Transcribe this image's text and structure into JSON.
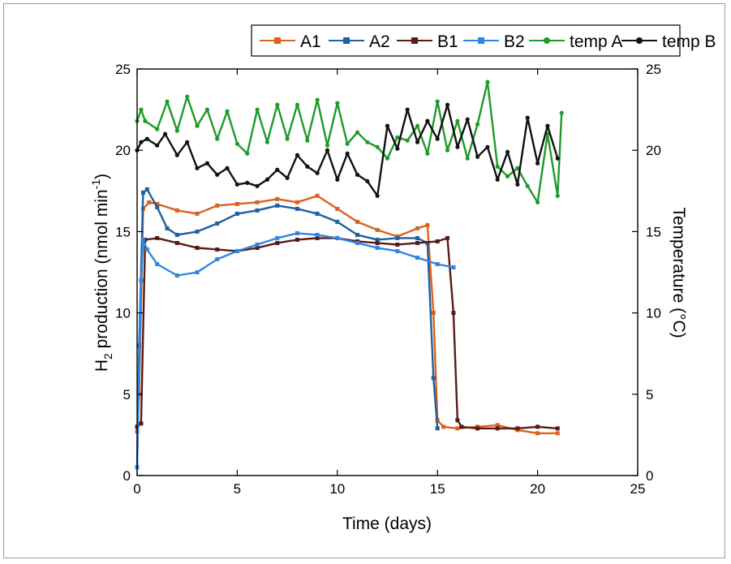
{
  "chart_data": {
    "type": "line",
    "xlabel": "Time (days)",
    "ylabel_main": "H",
    "ylabel_sub": "2",
    "ylabel_rest": " production (nmol min",
    "ylabel_sup": "-1",
    "ylabel_end": ")",
    "y2label": "Temperature (°C)",
    "xlim": [
      0,
      25
    ],
    "ylim": [
      0,
      25
    ],
    "y2lim": [
      0,
      25
    ],
    "xticks": [
      "0",
      "5",
      "10",
      "15",
      "20",
      "25"
    ],
    "yticks": [
      "0",
      "5",
      "10",
      "15",
      "20",
      "25"
    ],
    "y2ticks": [
      "0",
      "5",
      "10",
      "15",
      "20",
      "25"
    ],
    "legend_position": "top",
    "series": [
      {
        "name": "A1",
        "axis": "left",
        "color": "#d9621e",
        "marker": "square",
        "x": [
          0,
          0.1,
          0.3,
          0.6,
          1,
          2,
          3,
          4,
          5,
          6,
          7,
          8,
          9,
          10,
          11,
          12,
          13,
          14,
          14.5,
          14.8,
          15,
          15.3,
          16,
          17,
          18,
          19,
          20,
          21
        ],
        "y": [
          2.7,
          5,
          16.4,
          16.8,
          16.7,
          16.3,
          16.1,
          16.6,
          16.7,
          16.8,
          17,
          16.8,
          17.2,
          16.4,
          15.6,
          15.1,
          14.7,
          15.2,
          15.4,
          10,
          3.4,
          3.0,
          2.9,
          3.0,
          3.1,
          2.8,
          2.6,
          2.6
        ]
      },
      {
        "name": "A2",
        "axis": "left",
        "color": "#1e5f9e",
        "marker": "square",
        "x": [
          0,
          0.1,
          0.3,
          0.5,
          1,
          1.5,
          2,
          3,
          4,
          5,
          6,
          7,
          8,
          9,
          10,
          11,
          12,
          13,
          14,
          14.5,
          14.8,
          15
        ],
        "y": [
          0.5,
          8,
          17.4,
          17.6,
          16.5,
          15.2,
          14.8,
          15.0,
          15.5,
          16.1,
          16.3,
          16.6,
          16.4,
          16.1,
          15.6,
          14.8,
          14.5,
          14.6,
          14.6,
          14.3,
          6,
          2.9
        ]
      },
      {
        "name": "B1",
        "axis": "left",
        "color": "#5a1a18",
        "marker": "square",
        "x": [
          0,
          0.2,
          0.4,
          1,
          2,
          3,
          4,
          5,
          6,
          7,
          8,
          9,
          10,
          11,
          12,
          13,
          14,
          15,
          15.5,
          15.8,
          16,
          16.2,
          17,
          18,
          19,
          20,
          21
        ],
        "y": [
          3.0,
          3.2,
          14.5,
          14.6,
          14.3,
          14.0,
          13.9,
          13.8,
          14.0,
          14.3,
          14.5,
          14.6,
          14.6,
          14.4,
          14.3,
          14.2,
          14.3,
          14.4,
          14.6,
          10,
          3.4,
          3.0,
          2.9,
          2.9,
          2.9,
          3.0,
          2.9
        ]
      },
      {
        "name": "B2",
        "axis": "left",
        "color": "#2f86e0",
        "marker": "square",
        "x": [
          0,
          0.2,
          0.3,
          0.5,
          1,
          2,
          3,
          4,
          5,
          6,
          7,
          8,
          9,
          10,
          11,
          12,
          13,
          14,
          15,
          15.8
        ],
        "y": [
          0.5,
          12,
          14.5,
          13.9,
          13.0,
          12.3,
          12.5,
          13.3,
          13.8,
          14.2,
          14.6,
          14.9,
          14.8,
          14.6,
          14.3,
          14.0,
          13.8,
          13.4,
          13.0,
          12.8
        ]
      },
      {
        "name": "temp A",
        "axis": "right",
        "color": "#1f9a2a",
        "marker": "circle",
        "x": [
          0,
          0.2,
          0.4,
          1,
          1.5,
          2,
          2.5,
          3,
          3.5,
          4,
          4.5,
          5,
          5.5,
          6,
          6.5,
          7,
          7.5,
          8,
          8.5,
          9,
          9.5,
          10,
          10.5,
          11,
          11.5,
          12,
          12.5,
          13,
          13.5,
          14,
          14.5,
          15,
          15.5,
          16,
          16.5,
          17,
          17.5,
          18,
          18.5,
          19,
          19.5,
          20,
          20.5,
          21,
          21.2
        ],
        "y": [
          21.8,
          22.5,
          21.8,
          21.3,
          23.0,
          21.2,
          23.3,
          21.5,
          22.5,
          20.7,
          22.4,
          20.4,
          19.8,
          22.5,
          20.5,
          22.8,
          20.7,
          22.8,
          20.6,
          23.1,
          20.3,
          22.9,
          20.4,
          21.1,
          20.5,
          20.2,
          19.5,
          20.8,
          20.6,
          21.5,
          19.8,
          23.0,
          20.0,
          21.8,
          19.5,
          21.6,
          24.2,
          19.0,
          18.4,
          18.9,
          17.8,
          16.8,
          21.0,
          17.2,
          22.3
        ]
      },
      {
        "name": "temp B",
        "axis": "right",
        "color": "#111111",
        "marker": "circle",
        "x": [
          0,
          0.2,
          0.5,
          1,
          1.4,
          2,
          2.5,
          3,
          3.5,
          4,
          4.5,
          5,
          5.5,
          6,
          6.5,
          7,
          7.5,
          8,
          8.5,
          9,
          9.5,
          10,
          10.5,
          11,
          11.5,
          12,
          12.5,
          13,
          13.5,
          14,
          14.5,
          15,
          15.5,
          16,
          16.5,
          17,
          17.5,
          18,
          18.5,
          19,
          19.5,
          20,
          20.5,
          21
        ],
        "y": [
          20.0,
          20.5,
          20.7,
          20.3,
          21.0,
          19.7,
          20.5,
          18.9,
          19.2,
          18.5,
          18.9,
          17.9,
          18.0,
          17.8,
          18.2,
          18.8,
          18.3,
          19.7,
          19.0,
          18.6,
          20.0,
          18.2,
          19.8,
          18.5,
          18.1,
          17.2,
          21.5,
          20.1,
          22.5,
          20.5,
          21.8,
          20.7,
          22.8,
          20.2,
          21.9,
          19.6,
          20.2,
          18.2,
          19.9,
          17.9,
          22.0,
          19.2,
          21.5,
          19.5
        ]
      }
    ]
  }
}
